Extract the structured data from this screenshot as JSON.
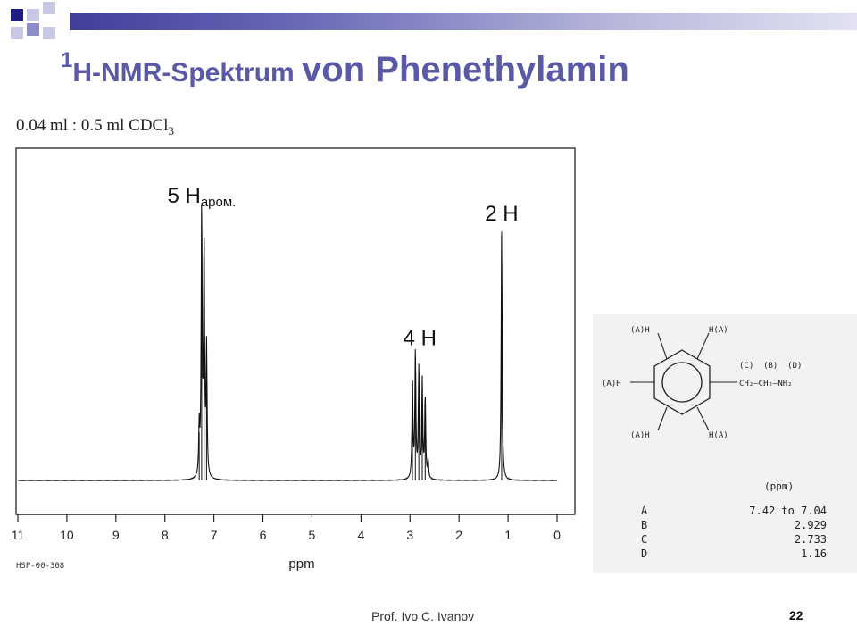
{
  "slide": {
    "title_sup": "1",
    "title_part1": "H-NMR-Spektrum ",
    "title_part2": "von Phenethylamin",
    "concentration_main": "0.04 ml : 0.5 ml CDCl",
    "concentration_sub": "3",
    "author": "Prof. Ivo C. Ivanov",
    "page_number": "22",
    "colors": {
      "title": "#5959a6",
      "accent_dark": "#3f3f9a"
    }
  },
  "chart_data": {
    "type": "line",
    "xlabel": "ppm",
    "xlim": [
      11,
      0
    ],
    "x_reversed": true,
    "x_ticks": [
      "11",
      "10",
      "9",
      "8",
      "7",
      "6",
      "5",
      "4",
      "3",
      "2",
      "1",
      "0"
    ],
    "code": "HSP-00-308",
    "grid": false,
    "peaks": [
      {
        "ppm": 7.25,
        "height": 0.88
      },
      {
        "ppm": 7.2,
        "height": 0.77
      },
      {
        "ppm": 7.15,
        "height": 0.42
      },
      {
        "ppm": 7.3,
        "height": 0.16
      },
      {
        "ppm": 2.95,
        "height": 0.33
      },
      {
        "ppm": 2.89,
        "height": 0.41
      },
      {
        "ppm": 2.82,
        "height": 0.36
      },
      {
        "ppm": 2.75,
        "height": 0.32
      },
      {
        "ppm": 2.69,
        "height": 0.27
      },
      {
        "ppm": 2.63,
        "height": 0.06
      },
      {
        "ppm": 1.13,
        "height": 0.82
      }
    ],
    "annotations": [
      {
        "text_main": "5 H",
        "text_sub": "аром.",
        "ppm": 7.25
      },
      {
        "text_main": "4 H",
        "text_sub": "",
        "ppm": 2.8
      },
      {
        "text_main": "2 H",
        "text_sub": "",
        "ppm": 1.13
      }
    ]
  },
  "structure": {
    "labels": {
      "h_top_left": "(A)H",
      "h_top_right": "H(A)",
      "h_left": "(A)H",
      "h_bottom_left": "(A)H",
      "h_bottom_right": "H(A)",
      "chain_labels": "(C)  (B)  (D)",
      "chain_formula": "CH₂—CH₂—NH₂"
    },
    "shift_header": "(ppm)",
    "shifts": [
      {
        "label": "A",
        "value": "7.42 to 7.04"
      },
      {
        "label": "B",
        "value": "2.929"
      },
      {
        "label": "C",
        "value": "2.733"
      },
      {
        "label": "D",
        "value": "1.16"
      }
    ]
  }
}
